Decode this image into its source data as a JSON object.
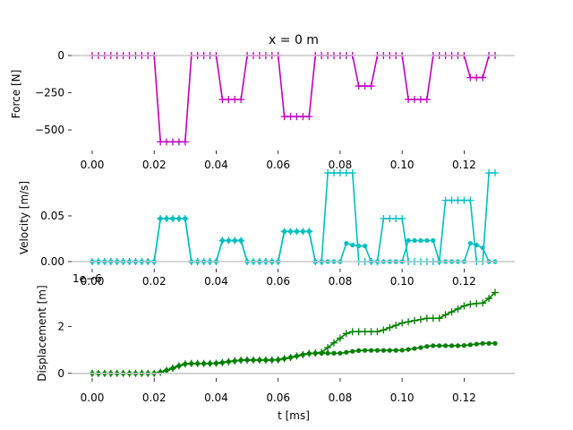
{
  "chart_data": {
    "title": "x = 0 m",
    "type": "line",
    "x_unit_label": "t [ms]",
    "x_ticks": [
      "0.00",
      "0.02",
      "0.04",
      "0.06",
      "0.08",
      "0.10",
      "0.12"
    ],
    "x_tick_values": [
      0.0,
      0.02,
      0.04,
      0.06,
      0.08,
      0.1,
      0.12
    ],
    "xlim": [
      0.0,
      0.13
    ],
    "panels": [
      {
        "id": "force",
        "ylabel": "Force [N]",
        "ylim": [
          -590,
          0
        ],
        "y_ticks": [
          "0",
          "−250",
          "−500"
        ],
        "y_tick_values": [
          0,
          -250,
          -500
        ],
        "scale_label": "",
        "x": [
          0.0,
          0.002,
          0.004,
          0.006,
          0.008,
          0.01,
          0.012,
          0.014,
          0.016,
          0.018,
          0.02,
          0.022,
          0.024,
          0.026,
          0.028,
          0.03,
          0.032,
          0.034,
          0.036,
          0.038,
          0.04,
          0.042,
          0.044,
          0.046,
          0.048,
          0.05,
          0.052,
          0.054,
          0.056,
          0.058,
          0.06,
          0.062,
          0.064,
          0.066,
          0.068,
          0.07,
          0.072,
          0.074,
          0.076,
          0.078,
          0.08,
          0.082,
          0.084,
          0.086,
          0.088,
          0.09,
          0.092,
          0.094,
          0.096,
          0.098,
          0.1,
          0.102,
          0.104,
          0.106,
          0.108,
          0.11,
          0.112,
          0.114,
          0.116,
          0.118,
          0.12,
          0.122,
          0.124,
          0.126,
          0.128,
          0.13
        ],
        "series": [
          {
            "color": "#bf00bf",
            "marker": "plus",
            "values": [
              0,
              0,
              0,
              0,
              0,
              0,
              0,
              0,
              0,
              0,
              0,
              -580,
              -580,
              -580,
              -580,
              -580,
              0,
              0,
              0,
              0,
              0,
              -295,
              -295,
              -295,
              -295,
              0,
              0,
              0,
              0,
              0,
              0,
              -410,
              -410,
              -410,
              -410,
              -410,
              0,
              0,
              0,
              0,
              0,
              0,
              0,
              -205,
              -205,
              -205,
              0,
              0,
              0,
              0,
              0,
              -295,
              -295,
              -295,
              -295,
              0,
              0,
              0,
              0,
              0,
              0,
              -148,
              -148,
              -148,
              0,
              0
            ]
          }
        ]
      },
      {
        "id": "velocity",
        "ylabel": "Velocity [m/s]",
        "ylim": [
          0,
          0.097
        ],
        "y_ticks": [
          "0.00",
          "0.05"
        ],
        "y_tick_values": [
          0,
          0.05
        ],
        "scale_label": "",
        "x": [
          0.0,
          0.002,
          0.004,
          0.006,
          0.008,
          0.01,
          0.012,
          0.014,
          0.016,
          0.018,
          0.02,
          0.022,
          0.024,
          0.026,
          0.028,
          0.03,
          0.032,
          0.034,
          0.036,
          0.038,
          0.04,
          0.042,
          0.044,
          0.046,
          0.048,
          0.05,
          0.052,
          0.054,
          0.056,
          0.058,
          0.06,
          0.062,
          0.064,
          0.066,
          0.068,
          0.07,
          0.072,
          0.074,
          0.076,
          0.078,
          0.08,
          0.082,
          0.084,
          0.086,
          0.088,
          0.09,
          0.092,
          0.094,
          0.096,
          0.098,
          0.1,
          0.102,
          0.104,
          0.106,
          0.108,
          0.11,
          0.112,
          0.114,
          0.116,
          0.118,
          0.12,
          0.122,
          0.124,
          0.126,
          0.128,
          0.13
        ],
        "series": [
          {
            "color": "#00bfbf",
            "marker": "plus",
            "values": [
              0,
              0,
              0,
              0,
              0,
              0,
              0,
              0,
              0,
              0,
              0,
              0.047,
              0.047,
              0.047,
              0.047,
              0.047,
              0,
              0,
              0,
              0,
              0,
              0.023,
              0.023,
              0.023,
              0.023,
              0,
              0,
              0,
              0,
              0,
              0,
              0.033,
              0.033,
              0.033,
              0.033,
              0.033,
              0,
              0,
              0.097,
              0.097,
              0.097,
              0.097,
              0.097,
              0,
              0,
              0,
              0,
              0.047,
              0.047,
              0.047,
              0.047,
              0,
              0,
              0,
              0,
              0,
              0,
              0.067,
              0.067,
              0.067,
              0.067,
              0.067,
              0,
              0,
              0.097,
              0.097
            ]
          },
          {
            "color": "#00bfbf",
            "marker": "dot",
            "values": [
              0,
              0,
              0,
              0,
              0,
              0,
              0,
              0,
              0,
              0,
              0,
              0.047,
              0.047,
              0.047,
              0.047,
              0.047,
              0,
              0,
              0,
              0,
              0,
              0.023,
              0.023,
              0.023,
              0.023,
              0,
              0,
              0,
              0,
              0,
              0,
              0.033,
              0.033,
              0.033,
              0.033,
              0.033,
              0,
              0,
              0,
              0,
              0,
              0.02,
              0.018,
              0.017,
              0.017,
              0,
              0,
              0,
              0,
              0,
              0,
              0.023,
              0.023,
              0.023,
              0.023,
              0.023,
              0,
              0,
              0,
              0,
              0,
              0.02,
              0.018,
              0.015,
              0,
              0
            ]
          }
        ]
      },
      {
        "id": "displacement",
        "ylabel": "Displacement [m]",
        "ylim": [
          -0.2,
          3.7
        ],
        "y_ticks": [
          "0",
          "2"
        ],
        "y_tick_values": [
          0,
          2
        ],
        "scale_label": "1e−6",
        "x": [
          0.0,
          0.002,
          0.004,
          0.006,
          0.008,
          0.01,
          0.012,
          0.014,
          0.016,
          0.018,
          0.02,
          0.022,
          0.024,
          0.026,
          0.028,
          0.03,
          0.032,
          0.034,
          0.036,
          0.038,
          0.04,
          0.042,
          0.044,
          0.046,
          0.048,
          0.05,
          0.052,
          0.054,
          0.056,
          0.058,
          0.06,
          0.062,
          0.064,
          0.066,
          0.068,
          0.07,
          0.072,
          0.074,
          0.076,
          0.078,
          0.08,
          0.082,
          0.084,
          0.086,
          0.088,
          0.09,
          0.092,
          0.094,
          0.096,
          0.098,
          0.1,
          0.102,
          0.104,
          0.106,
          0.108,
          0.11,
          0.112,
          0.114,
          0.116,
          0.118,
          0.12,
          0.122,
          0.124,
          0.126,
          0.128,
          0.13
        ],
        "series": [
          {
            "color": "#007f00",
            "marker": "plus",
            "values": [
              0,
              0,
              0,
              0,
              0,
              0,
              0,
              0,
              0,
              0,
              0,
              0.05,
              0.13,
              0.22,
              0.32,
              0.4,
              0.42,
              0.42,
              0.42,
              0.42,
              0.43,
              0.46,
              0.5,
              0.53,
              0.56,
              0.57,
              0.57,
              0.57,
              0.57,
              0.57,
              0.58,
              0.63,
              0.68,
              0.74,
              0.8,
              0.85,
              0.86,
              0.9,
              1.1,
              1.3,
              1.5,
              1.7,
              1.78,
              1.78,
              1.78,
              1.78,
              1.78,
              1.85,
              1.95,
              2.05,
              2.15,
              2.2,
              2.25,
              2.3,
              2.35,
              2.35,
              2.35,
              2.5,
              2.62,
              2.75,
              2.88,
              2.95,
              2.98,
              3.0,
              3.2,
              3.45
            ]
          },
          {
            "color": "#007f00",
            "marker": "dot",
            "values": [
              0,
              0,
              0,
              0,
              0,
              0,
              0,
              0,
              0,
              0,
              0,
              0.05,
              0.13,
              0.22,
              0.32,
              0.4,
              0.42,
              0.42,
              0.42,
              0.42,
              0.43,
              0.46,
              0.5,
              0.53,
              0.56,
              0.57,
              0.57,
              0.57,
              0.57,
              0.57,
              0.58,
              0.63,
              0.68,
              0.74,
              0.8,
              0.85,
              0.86,
              0.86,
              0.86,
              0.86,
              0.86,
              0.9,
              0.94,
              0.97,
              0.98,
              0.98,
              0.98,
              0.98,
              0.98,
              0.98,
              0.99,
              1.02,
              1.06,
              1.1,
              1.15,
              1.18,
              1.18,
              1.18,
              1.18,
              1.18,
              1.19,
              1.22,
              1.25,
              1.28,
              1.28,
              1.28
            ]
          }
        ]
      }
    ]
  }
}
